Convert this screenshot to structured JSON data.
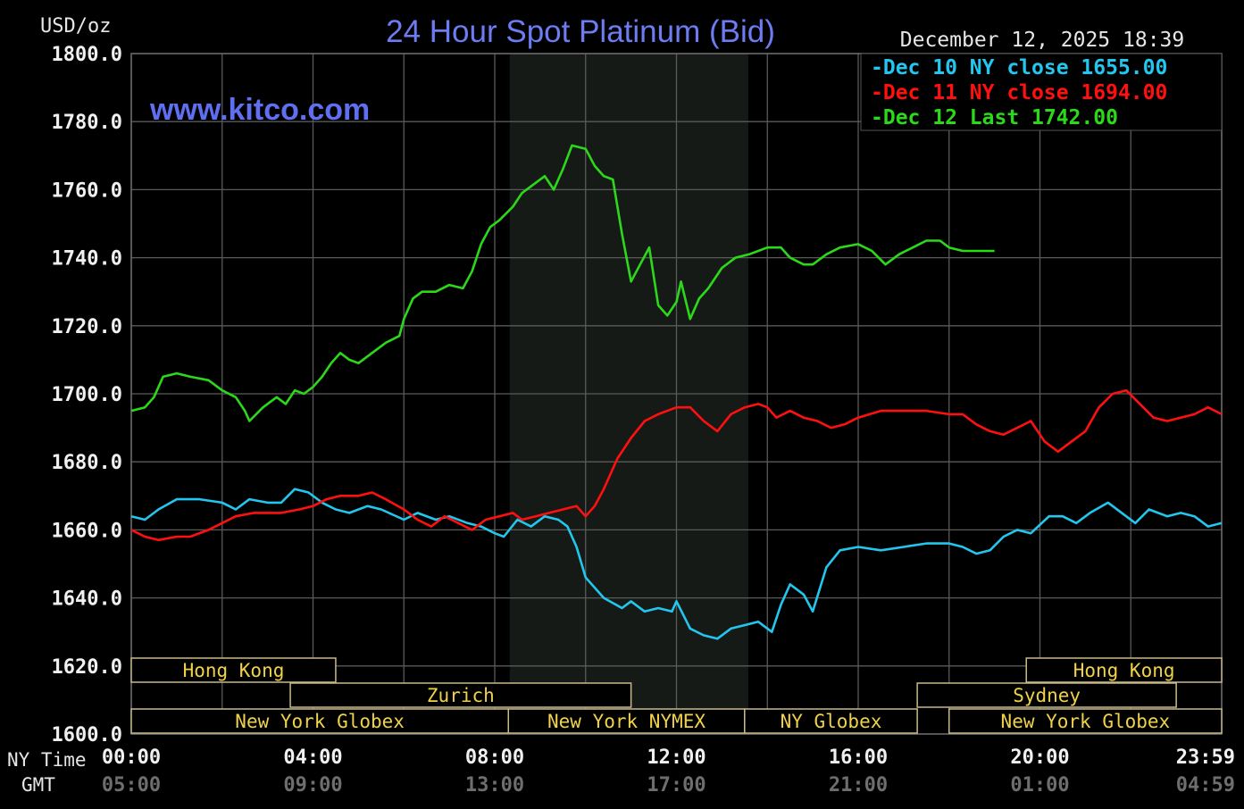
{
  "chart_data": {
    "type": "line",
    "title": "24 Hour Spot Platinum (Bid)",
    "units_label": "USD/oz",
    "date_label": "December 12, 2025 18:39",
    "watermark": "www.kitco.com",
    "ylim": [
      1600,
      1800
    ],
    "y_ticks": [
      "1800.0",
      "1780.0",
      "1760.0",
      "1740.0",
      "1720.0",
      "1700.0",
      "1680.0",
      "1660.0",
      "1640.0",
      "1620.0",
      "1600.0"
    ],
    "x_row_label_ny": "NY Time",
    "x_row_label_gmt": "GMT",
    "x_ticks_ny": [
      "00:00",
      "04:00",
      "08:00",
      "12:00",
      "16:00",
      "20:00",
      "23:59"
    ],
    "x_ticks_gmt": [
      "05:00",
      "09:00",
      "13:00",
      "17:00",
      "21:00",
      "01:00",
      "04:59"
    ],
    "x_tick_hours": [
      0,
      4,
      8,
      12,
      16,
      20,
      24
    ],
    "grid": true,
    "legend_position": "top-right",
    "highlight_hours": [
      8.33,
      13.58
    ],
    "series": [
      {
        "name": "Dec 10 NY close",
        "legend_label": "Dec 10 NY close 1655.00",
        "color": "#22c6ee",
        "points": [
          [
            0,
            1664
          ],
          [
            0.3,
            1663
          ],
          [
            0.6,
            1666
          ],
          [
            1.0,
            1669
          ],
          [
            1.5,
            1669
          ],
          [
            2.0,
            1668
          ],
          [
            2.3,
            1666
          ],
          [
            2.6,
            1669
          ],
          [
            3.0,
            1668
          ],
          [
            3.3,
            1668
          ],
          [
            3.6,
            1672
          ],
          [
            3.9,
            1671
          ],
          [
            4.2,
            1668
          ],
          [
            4.5,
            1666
          ],
          [
            4.8,
            1665
          ],
          [
            5.2,
            1667
          ],
          [
            5.5,
            1666
          ],
          [
            6.0,
            1663
          ],
          [
            6.3,
            1665
          ],
          [
            6.7,
            1663
          ],
          [
            7.0,
            1664
          ],
          [
            7.4,
            1662
          ],
          [
            7.7,
            1661
          ],
          [
            8.0,
            1659
          ],
          [
            8.2,
            1658
          ],
          [
            8.5,
            1663
          ],
          [
            8.8,
            1661
          ],
          [
            9.1,
            1664
          ],
          [
            9.4,
            1663
          ],
          [
            9.6,
            1661
          ],
          [
            9.8,
            1655
          ],
          [
            10.0,
            1646
          ],
          [
            10.4,
            1640
          ],
          [
            10.8,
            1637
          ],
          [
            11.0,
            1639
          ],
          [
            11.3,
            1636
          ],
          [
            11.6,
            1637
          ],
          [
            11.9,
            1636
          ],
          [
            12.0,
            1639
          ],
          [
            12.3,
            1631
          ],
          [
            12.6,
            1629
          ],
          [
            12.9,
            1628
          ],
          [
            13.2,
            1631
          ],
          [
            13.5,
            1632
          ],
          [
            13.8,
            1633
          ],
          [
            14.1,
            1630
          ],
          [
            14.3,
            1638
          ],
          [
            14.5,
            1644
          ],
          [
            14.8,
            1641
          ],
          [
            15.0,
            1636
          ],
          [
            15.3,
            1649
          ],
          [
            15.6,
            1654
          ],
          [
            16.0,
            1655
          ],
          [
            16.5,
            1654
          ],
          [
            17.0,
            1655
          ],
          [
            17.5,
            1656
          ],
          [
            18.0,
            1656
          ],
          [
            18.3,
            1655
          ],
          [
            18.6,
            1653
          ],
          [
            18.9,
            1654
          ],
          [
            19.2,
            1658
          ],
          [
            19.5,
            1660
          ],
          [
            19.8,
            1659
          ],
          [
            20.2,
            1664
          ],
          [
            20.5,
            1664
          ],
          [
            20.8,
            1662
          ],
          [
            21.1,
            1665
          ],
          [
            21.5,
            1668
          ],
          [
            21.8,
            1665
          ],
          [
            22.1,
            1662
          ],
          [
            22.4,
            1666
          ],
          [
            22.8,
            1664
          ],
          [
            23.1,
            1665
          ],
          [
            23.4,
            1664
          ],
          [
            23.7,
            1661
          ],
          [
            24.0,
            1662
          ]
        ]
      },
      {
        "name": "Dec 11 NY close",
        "legend_label": "Dec 11 NY close 1694.00",
        "color": "#ff1010",
        "points": [
          [
            0,
            1660
          ],
          [
            0.3,
            1658
          ],
          [
            0.6,
            1657
          ],
          [
            1.0,
            1658
          ],
          [
            1.3,
            1658
          ],
          [
            1.7,
            1660
          ],
          [
            2.0,
            1662
          ],
          [
            2.3,
            1664
          ],
          [
            2.7,
            1665
          ],
          [
            3.0,
            1665
          ],
          [
            3.3,
            1665
          ],
          [
            3.7,
            1666
          ],
          [
            4.0,
            1667
          ],
          [
            4.3,
            1669
          ],
          [
            4.6,
            1670
          ],
          [
            5.0,
            1670
          ],
          [
            5.3,
            1671
          ],
          [
            5.6,
            1669
          ],
          [
            6.0,
            1666
          ],
          [
            6.3,
            1663
          ],
          [
            6.6,
            1661
          ],
          [
            6.9,
            1664
          ],
          [
            7.2,
            1662
          ],
          [
            7.5,
            1660
          ],
          [
            7.8,
            1663
          ],
          [
            8.1,
            1664
          ],
          [
            8.4,
            1665
          ],
          [
            8.6,
            1663
          ],
          [
            8.9,
            1664
          ],
          [
            9.2,
            1665
          ],
          [
            9.5,
            1666
          ],
          [
            9.8,
            1667
          ],
          [
            10.0,
            1664
          ],
          [
            10.2,
            1667
          ],
          [
            10.4,
            1672
          ],
          [
            10.7,
            1681
          ],
          [
            11.0,
            1687
          ],
          [
            11.3,
            1692
          ],
          [
            11.6,
            1694
          ],
          [
            12.0,
            1696
          ],
          [
            12.3,
            1696
          ],
          [
            12.6,
            1692
          ],
          [
            12.9,
            1689
          ],
          [
            13.2,
            1694
          ],
          [
            13.5,
            1696
          ],
          [
            13.8,
            1697
          ],
          [
            14.0,
            1696
          ],
          [
            14.2,
            1693
          ],
          [
            14.5,
            1695
          ],
          [
            14.8,
            1693
          ],
          [
            15.1,
            1692
          ],
          [
            15.4,
            1690
          ],
          [
            15.7,
            1691
          ],
          [
            16.0,
            1693
          ],
          [
            16.5,
            1695
          ],
          [
            17.0,
            1695
          ],
          [
            17.5,
            1695
          ],
          [
            18.0,
            1694
          ],
          [
            18.3,
            1694
          ],
          [
            18.6,
            1691
          ],
          [
            18.9,
            1689
          ],
          [
            19.2,
            1688
          ],
          [
            19.5,
            1690
          ],
          [
            19.8,
            1692
          ],
          [
            20.1,
            1686
          ],
          [
            20.4,
            1683
          ],
          [
            20.7,
            1686
          ],
          [
            21.0,
            1689
          ],
          [
            21.3,
            1696
          ],
          [
            21.6,
            1700
          ],
          [
            21.9,
            1701
          ],
          [
            22.2,
            1697
          ],
          [
            22.5,
            1693
          ],
          [
            22.8,
            1692
          ],
          [
            23.1,
            1693
          ],
          [
            23.4,
            1694
          ],
          [
            23.7,
            1696
          ],
          [
            24.0,
            1694
          ]
        ]
      },
      {
        "name": "Dec 12 Last",
        "legend_label": "Dec 12 Last 1742.00",
        "color": "#2cd81a",
        "points": [
          [
            0,
            1695
          ],
          [
            0.3,
            1696
          ],
          [
            0.5,
            1699
          ],
          [
            0.7,
            1705
          ],
          [
            1.0,
            1706
          ],
          [
            1.3,
            1705
          ],
          [
            1.7,
            1704
          ],
          [
            2.0,
            1701
          ],
          [
            2.3,
            1699
          ],
          [
            2.5,
            1695
          ],
          [
            2.6,
            1692
          ],
          [
            2.9,
            1696
          ],
          [
            3.2,
            1699
          ],
          [
            3.4,
            1697
          ],
          [
            3.6,
            1701
          ],
          [
            3.8,
            1700
          ],
          [
            4.0,
            1702
          ],
          [
            4.2,
            1705
          ],
          [
            4.4,
            1709
          ],
          [
            4.6,
            1712
          ],
          [
            4.8,
            1710
          ],
          [
            5.0,
            1709
          ],
          [
            5.3,
            1712
          ],
          [
            5.6,
            1715
          ],
          [
            5.9,
            1717
          ],
          [
            6.0,
            1722
          ],
          [
            6.2,
            1728
          ],
          [
            6.4,
            1730
          ],
          [
            6.7,
            1730
          ],
          [
            7.0,
            1732
          ],
          [
            7.3,
            1731
          ],
          [
            7.5,
            1736
          ],
          [
            7.7,
            1744
          ],
          [
            7.9,
            1749
          ],
          [
            8.1,
            1751
          ],
          [
            8.4,
            1755
          ],
          [
            8.6,
            1759
          ],
          [
            8.9,
            1762
          ],
          [
            9.1,
            1764
          ],
          [
            9.3,
            1760
          ],
          [
            9.5,
            1766
          ],
          [
            9.7,
            1773
          ],
          [
            10.0,
            1772
          ],
          [
            10.2,
            1767
          ],
          [
            10.4,
            1764
          ],
          [
            10.6,
            1763
          ],
          [
            10.8,
            1747
          ],
          [
            11.0,
            1733
          ],
          [
            11.2,
            1738
          ],
          [
            11.4,
            1743
          ],
          [
            11.6,
            1726
          ],
          [
            11.8,
            1723
          ],
          [
            12.0,
            1727
          ],
          [
            12.1,
            1733
          ],
          [
            12.3,
            1722
          ],
          [
            12.5,
            1728
          ],
          [
            12.7,
            1731
          ],
          [
            13.0,
            1737
          ],
          [
            13.3,
            1740
          ],
          [
            13.6,
            1741
          ],
          [
            13.8,
            1742
          ],
          [
            14.0,
            1743
          ],
          [
            14.3,
            1743
          ],
          [
            14.5,
            1740
          ],
          [
            14.8,
            1738
          ],
          [
            15.0,
            1738
          ],
          [
            15.3,
            1741
          ],
          [
            15.6,
            1743
          ],
          [
            16.0,
            1744
          ],
          [
            16.3,
            1742
          ],
          [
            16.6,
            1738
          ],
          [
            16.9,
            1741
          ],
          [
            17.2,
            1743
          ],
          [
            17.5,
            1745
          ],
          [
            17.8,
            1745
          ],
          [
            18.0,
            1743
          ],
          [
            18.3,
            1742
          ],
          [
            18.6,
            1742
          ],
          [
            18.9,
            1742
          ],
          [
            19.0,
            1742
          ]
        ]
      }
    ],
    "markets": [
      {
        "name": "Hong Kong",
        "start": 0,
        "end": 4.5,
        "row": 0
      },
      {
        "name": "Zurich",
        "start": 3.5,
        "end": 11.0,
        "row": 1
      },
      {
        "name": "New York Globex",
        "start": 0,
        "end": 8.3,
        "row": 2
      },
      {
        "name": "New York NYMEX",
        "start": 8.3,
        "end": 13.5,
        "row": 2
      },
      {
        "name": "NY Globex",
        "start": 13.5,
        "end": 17.3,
        "row": 2
      },
      {
        "name": "Hong Kong",
        "start": 19.7,
        "end": 24,
        "row": 0
      },
      {
        "name": "Sydney",
        "start": 17.3,
        "end": 23.0,
        "row": 1
      },
      {
        "name": "New York Globex",
        "start": 18.0,
        "end": 24,
        "row": 2
      }
    ]
  }
}
